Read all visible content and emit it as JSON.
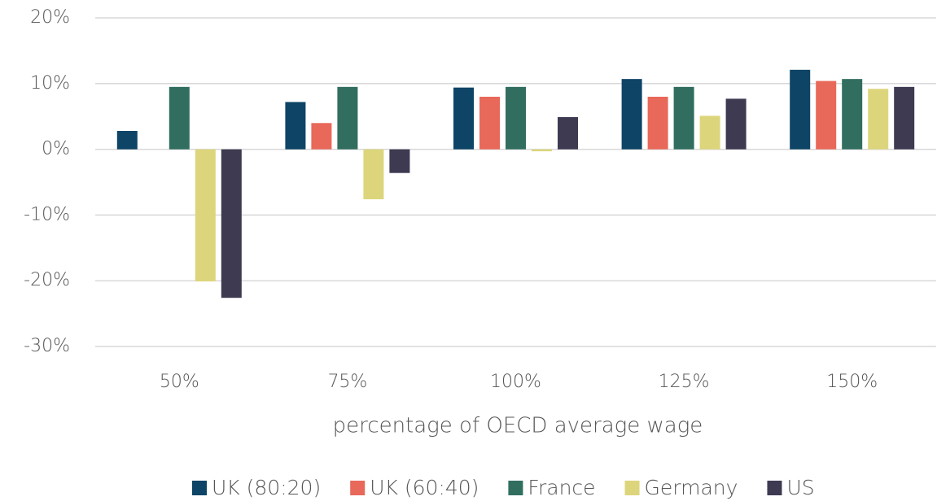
{
  "chart_data": {
    "type": "bar",
    "x_label": "percentage of OECD average wage",
    "categories": [
      "50%",
      "75%",
      "100%",
      "125%",
      "150%"
    ],
    "series": [
      {
        "name": "UK (80:20)",
        "color": "#0e4466",
        "values": [
          2.8,
          7.2,
          9.4,
          10.7,
          12.1
        ]
      },
      {
        "name": "UK (60:40)",
        "color": "#e8685a",
        "values": [
          null,
          4.0,
          8.0,
          8.0,
          10.4
        ]
      },
      {
        "name": "France",
        "color": "#316e60",
        "values": [
          9.5,
          9.5,
          9.5,
          9.5,
          10.7
        ]
      },
      {
        "name": "Germany",
        "color": "#ddd57c",
        "values": [
          -20.1,
          -7.6,
          -0.3,
          5.1,
          9.2
        ]
      },
      {
        "name": "US",
        "color": "#3d3a52",
        "values": [
          -22.6,
          -3.6,
          4.9,
          7.7,
          9.5
        ]
      }
    ],
    "ylim": [
      -30,
      20
    ],
    "yticks": [
      {
        "value": -30,
        "label": "-30%"
      },
      {
        "value": -20,
        "label": "-20%"
      },
      {
        "value": -10,
        "label": "-10%"
      },
      {
        "value": 0,
        "label": "0%"
      },
      {
        "value": 10,
        "label": "10%"
      },
      {
        "value": 20,
        "label": "20%"
      }
    ],
    "grid": true,
    "legend": "bottom"
  }
}
